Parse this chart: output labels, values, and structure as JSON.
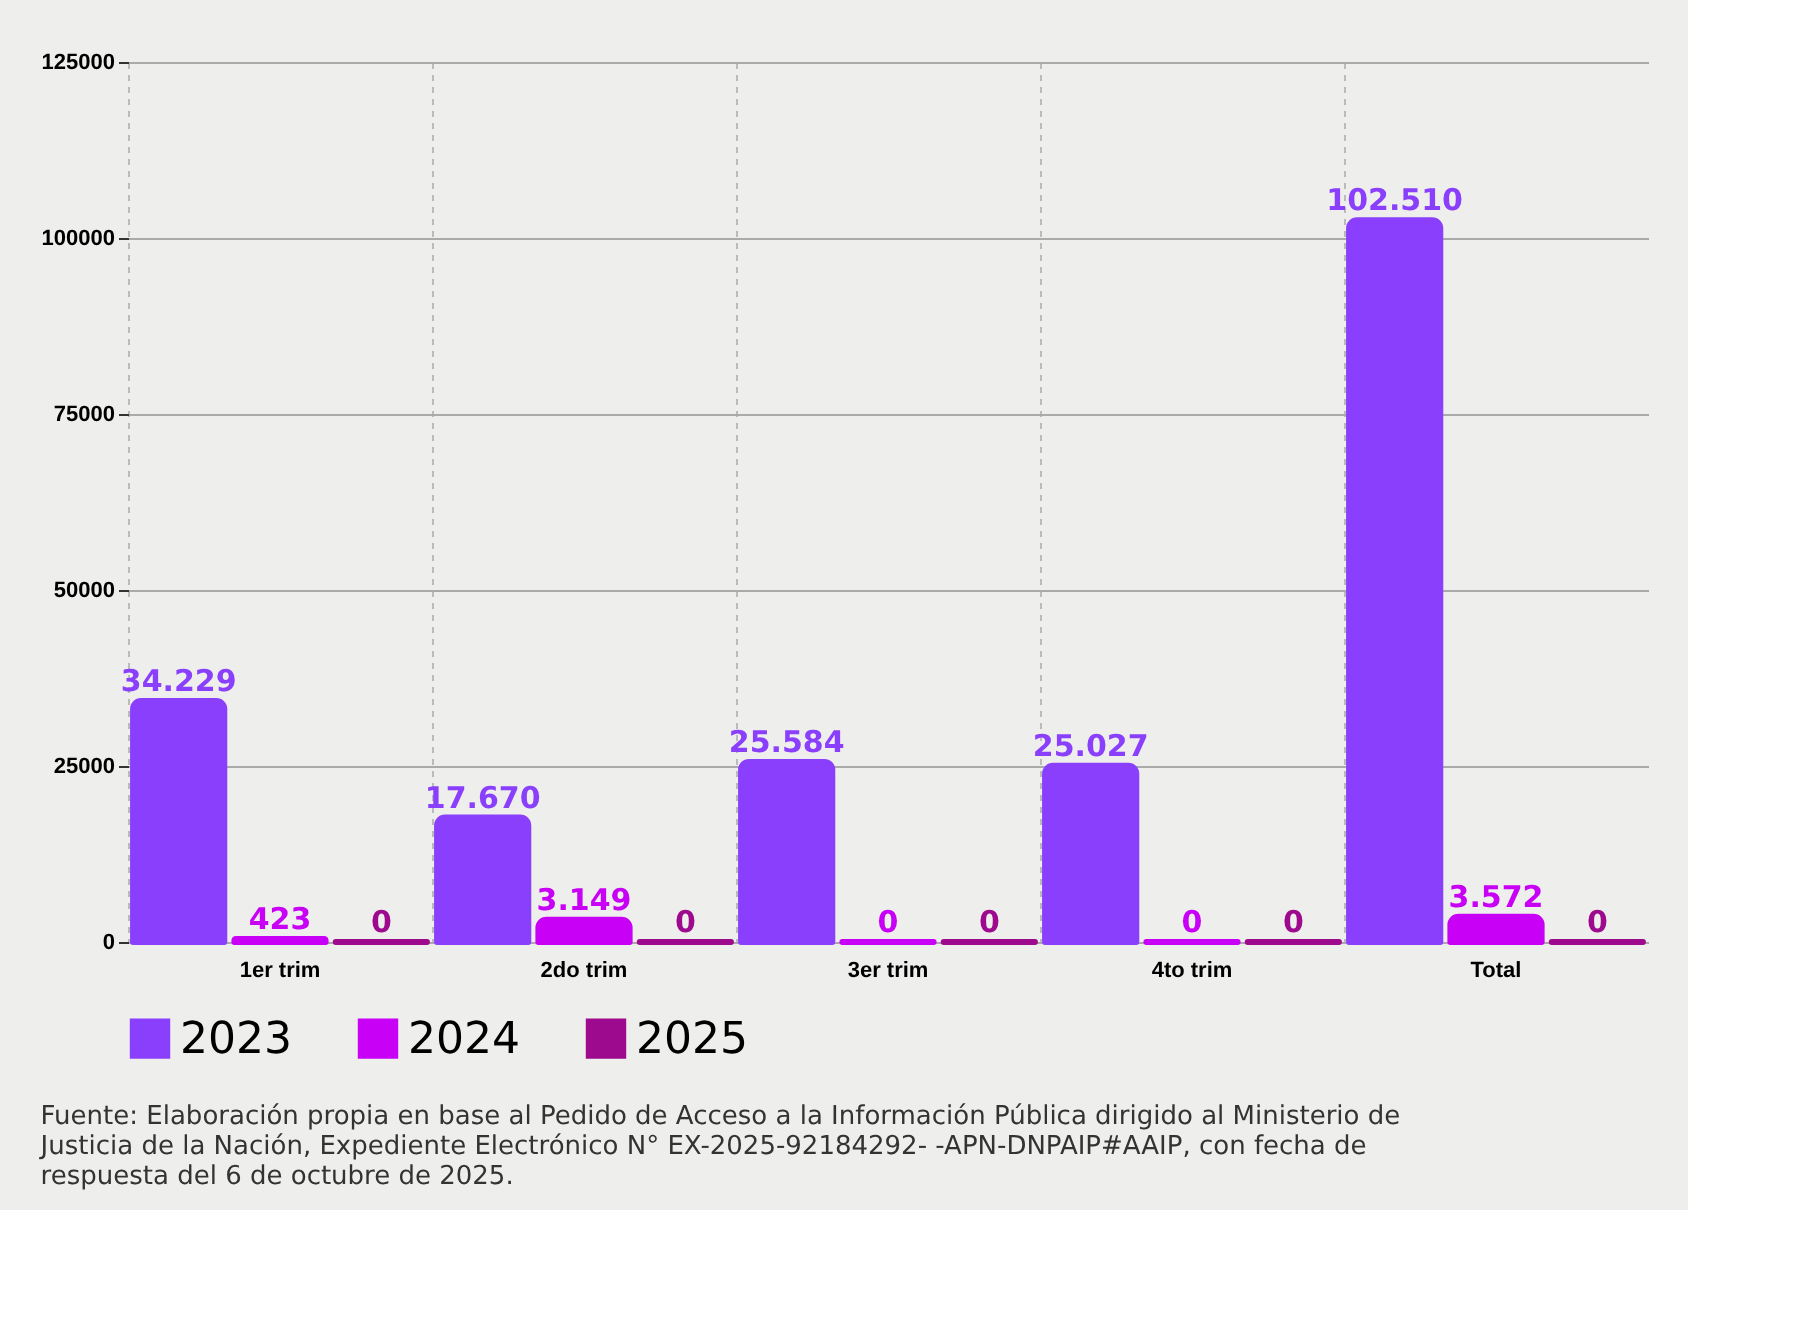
{
  "chart_data": {
    "type": "bar",
    "categories": [
      "1er trim",
      "2do trim",
      "3er trim",
      "4to trim",
      "Total"
    ],
    "series": [
      {
        "name": "2023",
        "color": "#8a3ffc",
        "values": [
          34229,
          17670,
          25584,
          25027,
          102510
        ],
        "value_labels": [
          "34.229",
          "17.670",
          "25.584",
          "25.027",
          "102.510"
        ]
      },
      {
        "name": "2024",
        "color": "#c800f5",
        "values": [
          423,
          3149,
          0,
          0,
          3572
        ],
        "value_labels": [
          "423",
          "3.149",
          "0",
          "0",
          "3.572"
        ]
      },
      {
        "name": "2025",
        "color": "#9e0a8e",
        "values": [
          0,
          0,
          0,
          0,
          0
        ],
        "value_labels": [
          "0",
          "0",
          "0",
          "0",
          "0"
        ]
      }
    ],
    "ylim": [
      0,
      125000
    ],
    "yticks": [
      0,
      25000,
      50000,
      75000,
      100000,
      125000
    ],
    "grid": true,
    "legend": "bottom",
    "annotations": [
      "Fuente: Elaboración propia en base al Pedido de Acceso a la Información Pública dirigido al Ministerio de Justicia de la Nación, Expediente Electrónico N° EX-2025-92184292- -APN-DNPAIP#AAIP, con fecha de respuesta del 6 de octubre de 2025."
    ]
  }
}
